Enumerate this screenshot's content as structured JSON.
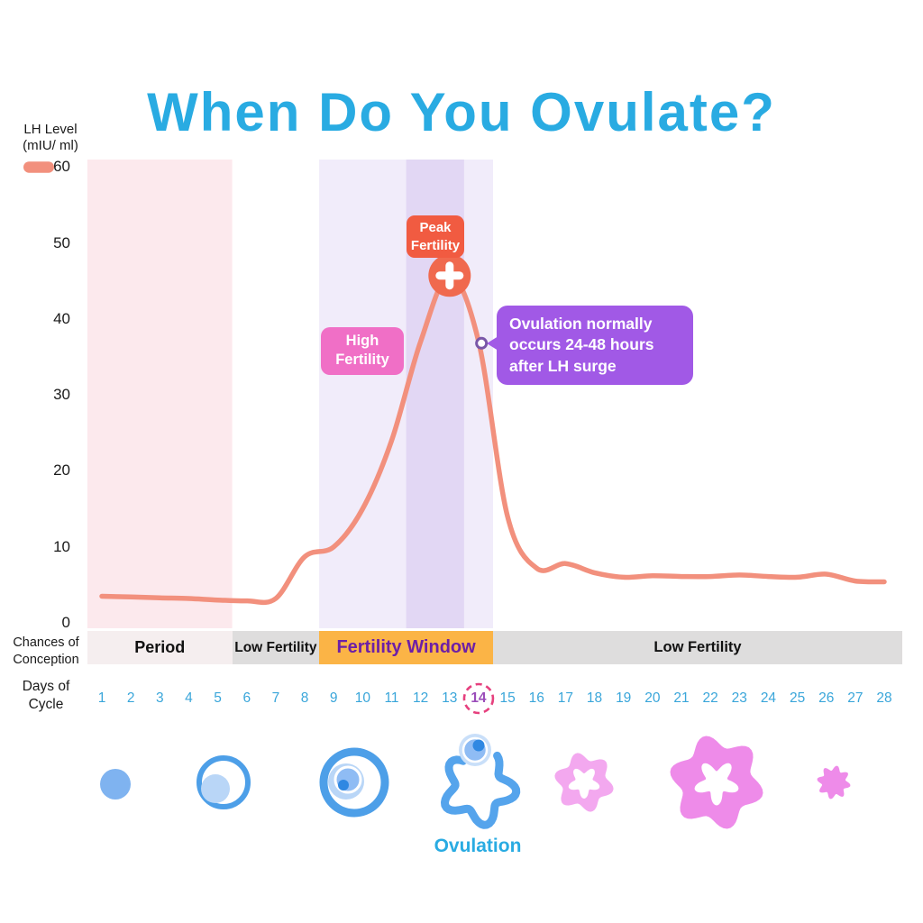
{
  "title": "When Do You Ovulate?",
  "axis": {
    "y_label_line1": "LH Level",
    "y_label_line2": "(mIU/ ml)",
    "x_label_line1": "Days of",
    "x_label_line2": "Cycle"
  },
  "conception_bar": {
    "label_line1": "Chances of",
    "label_line2": "Conception",
    "sections": [
      {
        "label": "Period",
        "class": "period",
        "day_start": 0.5,
        "day_end": 5.5
      },
      {
        "label": "Low Fertility",
        "class": "low",
        "day_start": 5.5,
        "day_end": 8.5
      },
      {
        "label": "Fertility Window",
        "class": "window",
        "day_start": 8.5,
        "day_end": 14.5
      },
      {
        "label": "Low Fertility",
        "class": "low2",
        "day_start": 14.5,
        "day_end": 28.62
      }
    ]
  },
  "annotations": {
    "peak_box": [
      "Peak",
      "Fertility"
    ],
    "high_box": [
      "High",
      "Fertility"
    ],
    "callout_lines": [
      "Ovulation normally",
      "occurs 24-48 hours",
      "after LH surge"
    ]
  },
  "footer": {
    "ovulation_label": "Ovulation"
  },
  "colors": {
    "title": "#29ABE2",
    "curve": "#F2907D",
    "peak_box": "#F15B41",
    "peak_marker": "#F0694E",
    "high_box": "#F06FC6",
    "callout": "#A159E6",
    "window_bar": "#FBB446",
    "window_text": "#6D1FA7",
    "day_number": "#3AA6DA",
    "day14": "#9B4DBA",
    "day14_ring": "#E6407E",
    "period_band": "#FCE9ED",
    "fertility_band": "#F1ECFA",
    "peak_band": "#E2D7F4",
    "bar_gray": "#DEDDDD",
    "period_bar": "#F5EEEF"
  },
  "chart_data": {
    "type": "line",
    "title": "When Do You Ovulate?",
    "xlabel": "Days of Cycle",
    "ylabel": "LH Level (mIU/ ml)",
    "x": [
      1,
      2,
      3,
      4,
      5,
      6,
      7,
      8,
      9,
      10,
      11,
      12,
      13,
      14,
      15,
      16,
      17,
      18,
      19,
      20,
      21,
      22,
      23,
      24,
      25,
      26,
      27,
      28
    ],
    "series": [
      {
        "name": "LH Level (mIU/ ml)",
        "color": "#F2907D",
        "values": [
          3.5,
          3.4,
          3.3,
          3.2,
          3.0,
          2.9,
          3.2,
          8.7,
          10,
          15,
          24,
          37,
          45.7,
          37,
          14,
          7.2,
          7.8,
          6.6,
          6.0,
          6.2,
          6.1,
          6.1,
          6.3,
          6.1,
          6.0,
          6.4,
          5.5,
          5.4
        ]
      }
    ],
    "ylim": [
      0,
      60
    ],
    "yticks": [
      0,
      10,
      20,
      30,
      40,
      50,
      60
    ],
    "grid": false,
    "legend_position": "top-left",
    "highlighted_day": 14,
    "regions": [
      {
        "label": "Period",
        "day_start": 1,
        "day_end": 5,
        "band_color": "#FCE9ED"
      },
      {
        "label": "Low Fertility",
        "day_start": 6,
        "day_end": 8,
        "band_color": null
      },
      {
        "label": "Fertility Window",
        "day_start": 9,
        "day_end": 14,
        "band_color": "#F1ECFA"
      },
      {
        "label": "Peak Fertility",
        "day_start": 12,
        "day_end": 13,
        "band_color": "#E2D7F4"
      },
      {
        "label": "Low Fertility",
        "day_start": 15,
        "day_end": 28,
        "band_color": null
      }
    ],
    "markers": [
      {
        "name": "lh-peak",
        "day": 13,
        "value": 45.7,
        "style": "plus-circle"
      },
      {
        "name": "ovulation-point",
        "day": 14.1,
        "value": 36.8,
        "style": "dot"
      }
    ]
  }
}
